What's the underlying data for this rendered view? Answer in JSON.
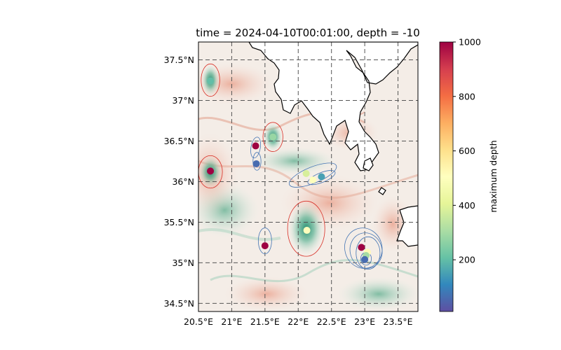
{
  "figure": {
    "title": "time = 2024-04-10T00:01:00, depth = -10"
  },
  "map": {
    "lon_range": [
      20.5,
      23.8
    ],
    "lat_range": [
      34.4,
      37.72
    ],
    "lon_ticks": [
      {
        "value": 20.5,
        "label": "20.5°E"
      },
      {
        "value": 21.0,
        "label": "21°E"
      },
      {
        "value": 21.5,
        "label": "21.5°E"
      },
      {
        "value": 22.0,
        "label": "22°E"
      },
      {
        "value": 22.5,
        "label": "22.5°E"
      },
      {
        "value": 23.0,
        "label": "23°E"
      },
      {
        "value": 23.5,
        "label": "23.5°E"
      }
    ],
    "lat_ticks": [
      {
        "value": 37.5,
        "label": "37.5°N"
      },
      {
        "value": 37.0,
        "label": "37°N"
      },
      {
        "value": 36.5,
        "label": "36.5°N"
      },
      {
        "value": 36.0,
        "label": "36°N"
      },
      {
        "value": 35.5,
        "label": "35.5°N"
      },
      {
        "value": 35.0,
        "label": "35°N"
      },
      {
        "value": 34.5,
        "label": "34.5°N"
      }
    ],
    "gridlines": true,
    "background_colormap": "diverging red-white-green (relative vorticity style)",
    "land_color": "#ffffff",
    "coastline_color": "#000000",
    "eddy_ellipse_colors": {
      "anticyclonic": "#d73027",
      "cyclonic": "#4575b4"
    },
    "eddy_ellipses": [
      {
        "lon": 20.68,
        "lat": 37.25,
        "rlon": 0.14,
        "rlat": 0.2,
        "angle": 0,
        "type": "anticyclonic"
      },
      {
        "lon": 20.68,
        "lat": 36.12,
        "rlon": 0.18,
        "rlat": 0.2,
        "angle": 0,
        "type": "anticyclonic"
      },
      {
        "lon": 21.62,
        "lat": 36.55,
        "rlon": 0.15,
        "rlat": 0.18,
        "angle": 0,
        "type": "anticyclonic"
      },
      {
        "lon": 21.36,
        "lat": 36.42,
        "rlon": 0.07,
        "rlat": 0.13,
        "angle": -10,
        "type": "cyclonic"
      },
      {
        "lon": 21.38,
        "lat": 36.25,
        "rlon": 0.06,
        "rlat": 0.11,
        "angle": 0,
        "type": "cyclonic"
      },
      {
        "lon": 22.22,
        "lat": 36.08,
        "rlon": 0.38,
        "rlat": 0.1,
        "angle": 22,
        "type": "cyclonic"
      },
      {
        "lon": 22.35,
        "lat": 36.05,
        "rlon": 0.22,
        "rlat": 0.06,
        "angle": 22,
        "type": "cyclonic"
      },
      {
        "lon": 22.12,
        "lat": 35.42,
        "rlon": 0.28,
        "rlat": 0.34,
        "angle": 0,
        "type": "anticyclonic"
      },
      {
        "lon": 21.5,
        "lat": 35.27,
        "rlon": 0.1,
        "rlat": 0.16,
        "angle": 0,
        "type": "cyclonic"
      },
      {
        "lon": 22.98,
        "lat": 35.18,
        "rlon": 0.28,
        "rlat": 0.25,
        "angle": 15,
        "type": "cyclonic"
      },
      {
        "lon": 23.02,
        "lat": 35.15,
        "rlon": 0.24,
        "rlat": 0.22,
        "angle": 15,
        "type": "cyclonic"
      },
      {
        "lon": 23.05,
        "lat": 35.12,
        "rlon": 0.18,
        "rlat": 0.2,
        "angle": 0,
        "type": "cyclonic"
      },
      {
        "lon": 23.02,
        "lat": 35.05,
        "rlon": 0.08,
        "rlat": 0.08,
        "angle": 0,
        "type": "cyclonic"
      }
    ],
    "eddy_centers": [
      {
        "lon": 20.68,
        "lat": 37.24,
        "max_depth": 200
      },
      {
        "lon": 20.68,
        "lat": 36.13,
        "max_depth": 1000
      },
      {
        "lon": 21.62,
        "lat": 36.55,
        "max_depth": 280
      },
      {
        "lon": 21.36,
        "lat": 36.44,
        "max_depth": 1000
      },
      {
        "lon": 21.37,
        "lat": 36.22,
        "max_depth": 60
      },
      {
        "lon": 22.12,
        "lat": 36.1,
        "max_depth": 380
      },
      {
        "lon": 22.22,
        "lat": 36.02,
        "max_depth": 500
      },
      {
        "lon": 22.35,
        "lat": 36.06,
        "max_depth": 150
      },
      {
        "lon": 22.13,
        "lat": 35.4,
        "max_depth": 500
      },
      {
        "lon": 21.5,
        "lat": 35.21,
        "max_depth": 1000
      },
      {
        "lon": 22.95,
        "lat": 35.19,
        "max_depth": 1000
      },
      {
        "lon": 23.04,
        "lat": 35.13,
        "max_depth": 520
      },
      {
        "lon": 23.02,
        "lat": 35.09,
        "max_depth": 300
      },
      {
        "lon": 23.0,
        "lat": 35.04,
        "max_depth": 60
      }
    ]
  },
  "colorbar": {
    "label": "maximum depth",
    "colormap": "Spectral_r",
    "range": [
      10,
      1000
    ],
    "ticks": [
      {
        "value": 200,
        "label": "200"
      },
      {
        "value": 400,
        "label": "400"
      },
      {
        "value": 600,
        "label": "600"
      },
      {
        "value": 800,
        "label": "800"
      },
      {
        "value": 1000,
        "label": "1000"
      }
    ]
  }
}
